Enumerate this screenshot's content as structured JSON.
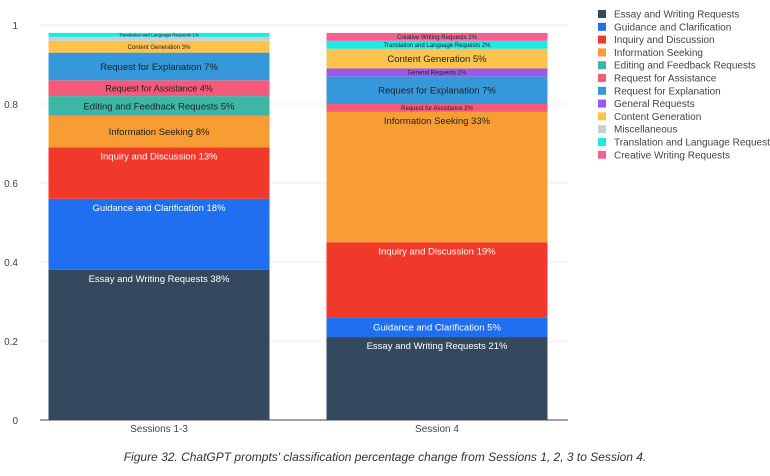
{
  "chart_data": {
    "type": "bar",
    "stacked": true,
    "categories": [
      "Sessions 1-3",
      "Session 4"
    ],
    "ylim": [
      0,
      1
    ],
    "yticks": [
      0,
      0.2,
      0.4,
      0.6,
      0.8,
      1
    ],
    "ytick_labels": [
      "0",
      "0.2",
      "0.4",
      "0.6",
      "0.8",
      "1"
    ],
    "grid": true,
    "legend_position": "right",
    "series": [
      {
        "name": "Essay and Writing Requests",
        "color": "#34495e",
        "values": [
          0.38,
          0.21
        ],
        "labels": [
          "Essay and Writing Requests 38%",
          "Essay and Writing Requests 21%"
        ]
      },
      {
        "name": "Guidance and Clarification",
        "color": "#1f6ff0",
        "values": [
          0.18,
          0.05
        ],
        "labels": [
          "Guidance and Clarification 18%",
          "Guidance and Clarification 5%"
        ]
      },
      {
        "name": "Inquiry and Discussion",
        "color": "#f1392b",
        "values": [
          0.13,
          0.19
        ],
        "labels": [
          "Inquiry and Discussion 13%",
          "Inquiry and Discussion 19%"
        ]
      },
      {
        "name": "Information Seeking",
        "color": "#f89c34",
        "values": [
          0.08,
          0.33
        ],
        "labels": [
          "Information Seeking 8%",
          "Information Seeking 33%"
        ]
      },
      {
        "name": "Editing and Feedback Requests",
        "color": "#3db7a5",
        "values": [
          0.05,
          0.0
        ],
        "labels": [
          "Editing and Feedback Requests 5%",
          ""
        ]
      },
      {
        "name": "Request for Assistance",
        "color": "#f45b7a",
        "values": [
          0.04,
          0.02
        ],
        "labels": [
          "Request for Assistance 4%",
          "Request for Assistance 2%"
        ]
      },
      {
        "name": "Request for Explanation",
        "color": "#3498db",
        "values": [
          0.07,
          0.07
        ],
        "labels": [
          "Request for Explanation 7%",
          "Request for Explanation 7%"
        ]
      },
      {
        "name": "General Requests",
        "color": "#9b59e8",
        "values": [
          0.0,
          0.02
        ],
        "labels": [
          "",
          "General Requests 2%"
        ]
      },
      {
        "name": "Content Generation",
        "color": "#fdc34d",
        "values": [
          0.03,
          0.05
        ],
        "labels": [
          "Content Generation 3%",
          "Content Generation 5%"
        ]
      },
      {
        "name": "Miscellaneous",
        "color": "#c9ced3",
        "values": [
          0.01,
          0.0
        ],
        "labels": [
          "",
          ""
        ]
      },
      {
        "name": "Translation and Language Requests",
        "color": "#1de9e6",
        "values": [
          0.01,
          0.02
        ],
        "labels": [
          "Translation and Language Requests 1%",
          "Translation and Language Requests 2%"
        ]
      },
      {
        "name": "Creative Writing Requests",
        "color": "#f06292",
        "values": [
          0.0,
          0.02
        ],
        "labels": [
          "",
          "Creative Writing Requests 2%"
        ]
      }
    ]
  },
  "caption": "Figure 32. ChatGPT prompts' classification percentage change from Sessions 1, 2, 3 to Session 4."
}
